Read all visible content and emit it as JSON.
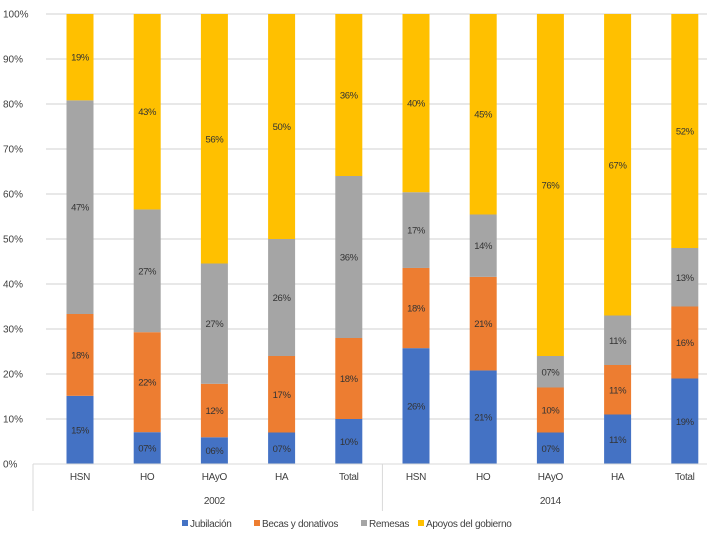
{
  "chart_data": {
    "type": "bar",
    "stacked": true,
    "percent_stacked": true,
    "title": "",
    "xlabel": "",
    "ylabel": "",
    "ylim": [
      0,
      100
    ],
    "yticks": [
      "0%",
      "10%",
      "20%",
      "30%",
      "40%",
      "50%",
      "60%",
      "70%",
      "80%",
      "90%",
      "100%"
    ],
    "grid": true,
    "legend_position": "bottom",
    "groups": [
      {
        "label": "2002",
        "categories": [
          "HSN",
          "HO",
          "HAyO",
          "HA",
          "Total"
        ]
      },
      {
        "label": "2014",
        "categories": [
          "HSN",
          "HO",
          "HAyO",
          "HA",
          "Total"
        ]
      }
    ],
    "categories": [
      "HSN",
      "HO",
      "HAyO",
      "HA",
      "Total",
      "HSN",
      "HO",
      "HAyO",
      "HA",
      "Total"
    ],
    "series": [
      {
        "name": "Jubilación",
        "color": "#4472C4",
        "values": [
          15,
          7,
          6,
          7,
          10,
          26,
          21,
          7,
          11,
          19
        ],
        "labels": [
          "15%",
          "07%",
          "06%",
          "07%",
          "10%",
          "26%",
          "21%",
          "07%",
          "11%",
          "19%"
        ]
      },
      {
        "name": "Becas y donativos",
        "color": "#ED7D31",
        "values": [
          18,
          22,
          12,
          17,
          18,
          18,
          21,
          10,
          11,
          16
        ],
        "labels": [
          "18%",
          "22%",
          "12%",
          "17%",
          "18%",
          "18%",
          "21%",
          "10%",
          "11%",
          "16%"
        ]
      },
      {
        "name": "Remesas",
        "color": "#A5A5A5",
        "values": [
          47,
          27,
          27,
          26,
          36,
          17,
          14,
          7,
          11,
          13
        ],
        "labels": [
          "47%",
          "27%",
          "27%",
          "26%",
          "36%",
          "17%",
          "14%",
          "07%",
          "11%",
          "13%"
        ]
      },
      {
        "name": "Apoyos del gobierno",
        "color": "#FFC000",
        "values": [
          19,
          43,
          56,
          50,
          36,
          40,
          45,
          76,
          67,
          52
        ],
        "labels": [
          "19%",
          "43%",
          "56%",
          "50%",
          "36%",
          "40%",
          "45%",
          "76%",
          "67%",
          "52%"
        ]
      }
    ]
  },
  "colors": {
    "gridline": "#D9D9D9",
    "axis": "#D9D9D9",
    "text": "#404040"
  }
}
